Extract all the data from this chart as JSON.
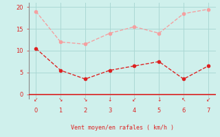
{
  "x": [
    0,
    1,
    2,
    3,
    4,
    5,
    6,
    7
  ],
  "y_rafales": [
    19.0,
    12.0,
    11.5,
    14.0,
    15.5,
    14.0,
    18.5,
    19.5
  ],
  "y_moyen": [
    10.5,
    5.5,
    3.5,
    5.5,
    6.5,
    7.5,
    3.5,
    6.5
  ],
  "color_rafales": "#f4a0a0",
  "color_moyen": "#dd2222",
  "background_color": "#cff0ec",
  "grid_color": "#aad8d4",
  "xlabel": "Vent moyen/en rafales ( km/h )",
  "xlabel_color": "#dd2222",
  "tick_color": "#dd2222",
  "axis_color": "#888888",
  "ylim": [
    -1,
    21
  ],
  "xlim": [
    -0.3,
    7.3
  ],
  "yticks": [
    0,
    5,
    10,
    15,
    20
  ],
  "xticks": [
    0,
    1,
    2,
    3,
    4,
    5,
    6,
    7
  ],
  "arrow_markers": [
    "↙",
    "↘",
    "↘",
    "↓",
    "↙",
    "↓",
    "↖",
    "↙"
  ],
  "marker_size": 3,
  "linewidth": 1.0
}
